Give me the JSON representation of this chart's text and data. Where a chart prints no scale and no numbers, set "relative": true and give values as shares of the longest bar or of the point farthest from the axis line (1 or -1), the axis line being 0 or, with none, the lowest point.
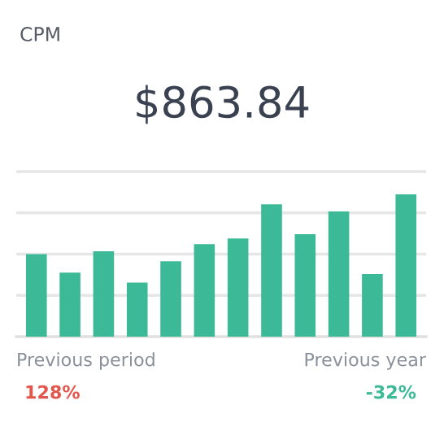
{
  "chart_data": {
    "type": "bar",
    "title": "CPM",
    "relative": true,
    "grid": "y",
    "categories": [
      null,
      null,
      null,
      null,
      null,
      null,
      null,
      null,
      null,
      null,
      null,
      null
    ],
    "values": [
      0.58,
      0.45,
      0.6,
      0.38,
      0.53,
      0.65,
      0.69,
      0.93,
      0.72,
      0.88,
      0.44,
      1
    ],
    "color": "#3cba97",
    "annotations": [
      "$863.84",
      "Previous period",
      "128%",
      "Previous year",
      "-32%"
    ]
  }
}
